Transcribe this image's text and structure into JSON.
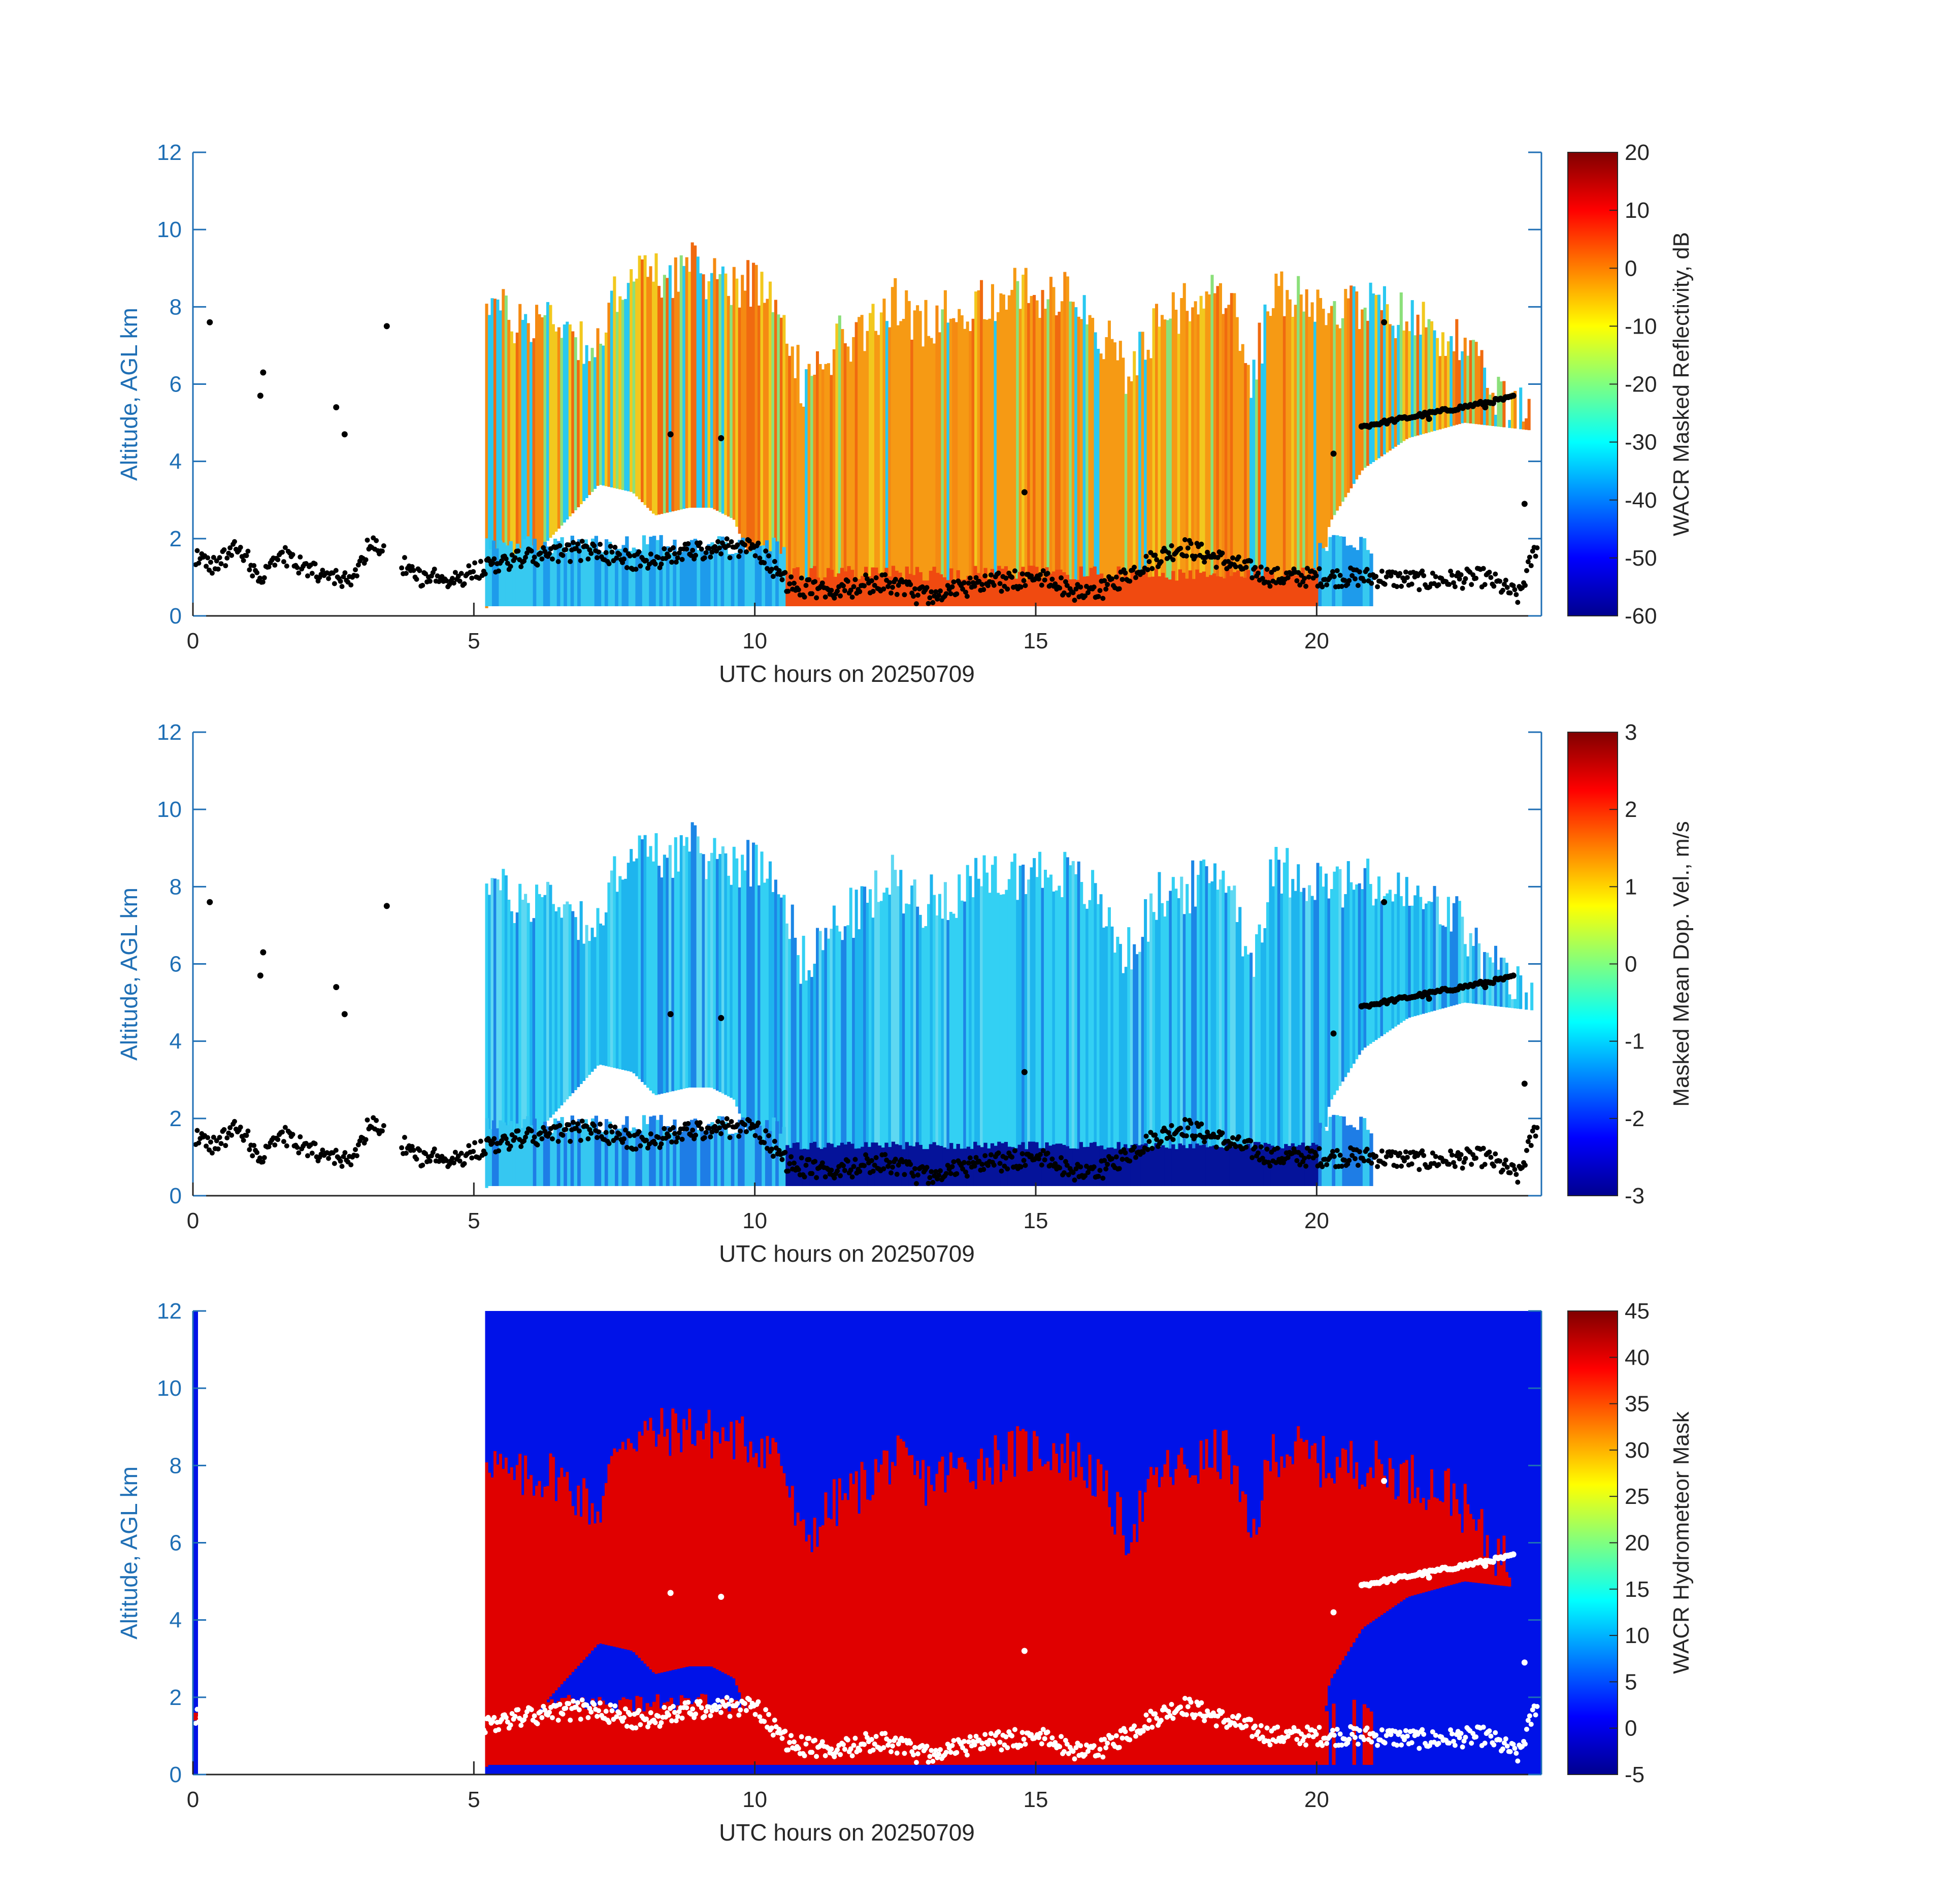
{
  "figure": {
    "x_axis_label": "UTC hours on 20250709",
    "y_axis_label": "Altitude, AGL km",
    "axis_color": "#1F6FB5",
    "x_ticks": [
      0,
      5,
      10,
      15,
      20
    ],
    "y_ticks": [
      0,
      2,
      4,
      6,
      8,
      10,
      12
    ]
  },
  "chart_data": [
    {
      "type": "heatmap",
      "xlabel": "UTC hours on 20250709",
      "ylabel": "Altitude, AGL km",
      "xlim": [
        0,
        24
      ],
      "ylim": [
        0,
        12
      ],
      "colorbar": {
        "label": "WACR Masked Reflectivity, dB",
        "range": [
          -60,
          20
        ],
        "ticks": [
          20,
          10,
          0,
          -10,
          -20,
          -30,
          -40,
          -50,
          -60
        ],
        "colormap": "jet"
      },
      "cloud_top_km": [
        [
          5.2,
          8.4
        ],
        [
          5.6,
          7.6
        ],
        [
          6.4,
          7.8
        ],
        [
          7.2,
          6.8
        ],
        [
          7.6,
          8.8
        ],
        [
          8.2,
          8.8
        ],
        [
          8.8,
          9.0
        ],
        [
          9.2,
          8.8
        ],
        [
          9.6,
          8.7
        ],
        [
          10.0,
          8.6
        ],
        [
          10.4,
          8.4
        ],
        [
          10.8,
          6.0
        ],
        [
          11.4,
          7.0
        ],
        [
          12.0,
          7.6
        ],
        [
          12.4,
          8.2
        ],
        [
          13.0,
          7.6
        ],
        [
          13.6,
          7.9
        ],
        [
          14.2,
          8.2
        ],
        [
          14.8,
          8.4
        ],
        [
          15.4,
          8.4
        ],
        [
          16.0,
          7.8
        ],
        [
          16.6,
          6.2
        ],
        [
          17.2,
          7.8
        ],
        [
          17.8,
          8.0
        ],
        [
          18.4,
          8.4
        ],
        [
          18.8,
          6.0
        ],
        [
          19.2,
          8.4
        ],
        [
          19.6,
          8.4
        ],
        [
          20.2,
          8.0
        ],
        [
          20.8,
          8.1
        ],
        [
          21.6,
          7.7
        ],
        [
          22.4,
          7.3
        ],
        [
          23.0,
          6.0
        ],
        [
          23.8,
          5.0
        ]
      ],
      "cloud_base_km": [
        [
          5.2,
          0.2
        ],
        [
          7.2,
          3.4
        ],
        [
          7.8,
          3.2
        ],
        [
          8.2,
          2.6
        ],
        [
          8.8,
          2.8
        ],
        [
          9.2,
          2.8
        ],
        [
          9.6,
          2.5
        ],
        [
          10.2,
          0.3
        ],
        [
          12.0,
          0.3
        ],
        [
          14.0,
          0.3
        ],
        [
          16.0,
          0.3
        ],
        [
          18.0,
          0.3
        ],
        [
          20.0,
          0.3
        ],
        [
          20.2,
          2.4
        ],
        [
          20.8,
          3.8
        ],
        [
          21.6,
          4.6
        ],
        [
          22.6,
          5.0
        ],
        [
          23.8,
          4.8
        ]
      ],
      "ceilometer_first_base_km": [
        [
          0.0,
          1.6
        ],
        [
          0.4,
          1.3
        ],
        [
          0.8,
          1.8
        ],
        [
          1.2,
          1.0
        ],
        [
          1.6,
          1.6
        ],
        [
          2.0,
          1.2
        ],
        [
          2.4,
          1.0
        ],
        [
          2.8,
          0.9
        ],
        [
          3.2,
          2.0
        ],
        [
          4.0,
          1.0
        ],
        [
          4.8,
          1.0
        ],
        [
          5.2,
          1.3
        ],
        [
          6.0,
          1.5
        ],
        [
          7.0,
          1.7
        ],
        [
          8.0,
          1.4
        ],
        [
          9.0,
          1.7
        ],
        [
          10.0,
          1.8
        ],
        [
          10.6,
          0.8
        ],
        [
          11.4,
          0.6
        ],
        [
          12.2,
          0.9
        ],
        [
          13.0,
          0.5
        ],
        [
          14.0,
          0.8
        ],
        [
          15.0,
          1.0
        ],
        [
          16.0,
          0.5
        ],
        [
          17.0,
          1.4
        ],
        [
          17.6,
          1.8
        ],
        [
          18.4,
          1.4
        ],
        [
          19.2,
          1.0
        ],
        [
          20.0,
          1.0
        ],
        [
          21.0,
          1.0
        ],
        [
          22.0,
          0.9
        ],
        [
          23.0,
          1.0
        ],
        [
          23.6,
          0.5
        ],
        [
          24.0,
          2.2
        ]
      ],
      "ceilometer_upper_base_km": [
        [
          0.3,
          7.6
        ],
        [
          1.25,
          6.3
        ],
        [
          1.2,
          5.7
        ],
        [
          2.55,
          5.4
        ],
        [
          2.7,
          4.7
        ],
        [
          3.45,
          7.5
        ],
        [
          8.5,
          4.7
        ],
        [
          9.4,
          4.6
        ],
        [
          14.8,
          3.2
        ],
        [
          20.3,
          4.2
        ],
        [
          20.8,
          4.9
        ],
        [
          21.2,
          7.6
        ],
        [
          22.0,
          5.1
        ],
        [
          23.0,
          5.4
        ],
        [
          23.5,
          5.7
        ],
        [
          23.7,
          2.9
        ]
      ]
    },
    {
      "type": "heatmap",
      "xlabel": "UTC hours on 20250709",
      "ylabel": "Altitude, AGL km",
      "xlim": [
        0,
        24
      ],
      "ylim": [
        0,
        12
      ],
      "colorbar": {
        "label": "Masked Mean Dop. Vel., m/s",
        "range": [
          -3,
          3
        ],
        "ticks": [
          3,
          2,
          1,
          0,
          -1,
          -2,
          -3
        ],
        "colormap": "jet"
      }
    },
    {
      "type": "heatmap",
      "xlabel": "UTC hours on 20250709",
      "ylabel": "Altitude, AGL km",
      "xlim": [
        0,
        24
      ],
      "ylim": [
        0,
        12
      ],
      "colorbar": {
        "label": "WACR Hydrometeor Mask",
        "range": [
          -5,
          45
        ],
        "ticks": [
          45,
          40,
          35,
          30,
          25,
          20,
          15,
          10,
          5,
          0,
          -5
        ],
        "colormap": "jet"
      },
      "mask_valid_x_range": [
        5.2,
        24
      ],
      "mask_values": {
        "no_hydrometeor": 0,
        "hydrometeor": 40
      }
    }
  ]
}
